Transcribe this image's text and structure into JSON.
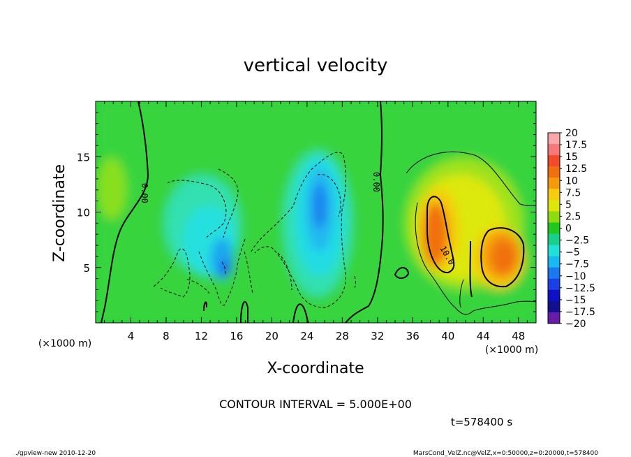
{
  "chart_data": {
    "type": "heatmap",
    "title": "vertical velocity",
    "xlabel": "X-coordinate",
    "ylabel": "Z-coordinate",
    "x_unit": "(×1000 m)",
    "y_unit": "(×1000 m)",
    "xlim": [
      0,
      50
    ],
    "ylim": [
      0,
      20
    ],
    "x_ticks": [
      4,
      8,
      12,
      16,
      20,
      24,
      28,
      32,
      36,
      40,
      44,
      48
    ],
    "y_ticks": [
      5,
      10,
      15
    ],
    "colorbar": {
      "labels": [
        "20",
        "17.5",
        "15",
        "12.5",
        "10",
        "7.5",
        "5",
        "2.5",
        "0",
        "−2.5",
        "−5",
        "−7.5",
        "−10",
        "−12.5",
        "−15",
        "−17.5",
        "−20"
      ],
      "colors": [
        "#f7a8a8",
        "#f77878",
        "#f24a2a",
        "#f07010",
        "#f59a0a",
        "#f5cc10",
        "#dde80a",
        "#8edc10",
        "#1fc81f",
        "#18d08a",
        "#20e0d8",
        "#18b8f0",
        "#1a78f0",
        "#1a40e8",
        "#1010c8",
        "#101090",
        "#6a1aa8"
      ]
    },
    "contour_labels": [
      "0.00",
      "0.00",
      "10.0"
    ],
    "contour_interval_text": "CONTOUR INTERVAL = 5.000E+00"
  },
  "time_label": "t=578400 s",
  "footer_left": "./gpview-new   2010-12-20",
  "footer_right": "MarsCond_VelZ.nc@VelZ,x=0:50000,z=0:20000,t=578400"
}
